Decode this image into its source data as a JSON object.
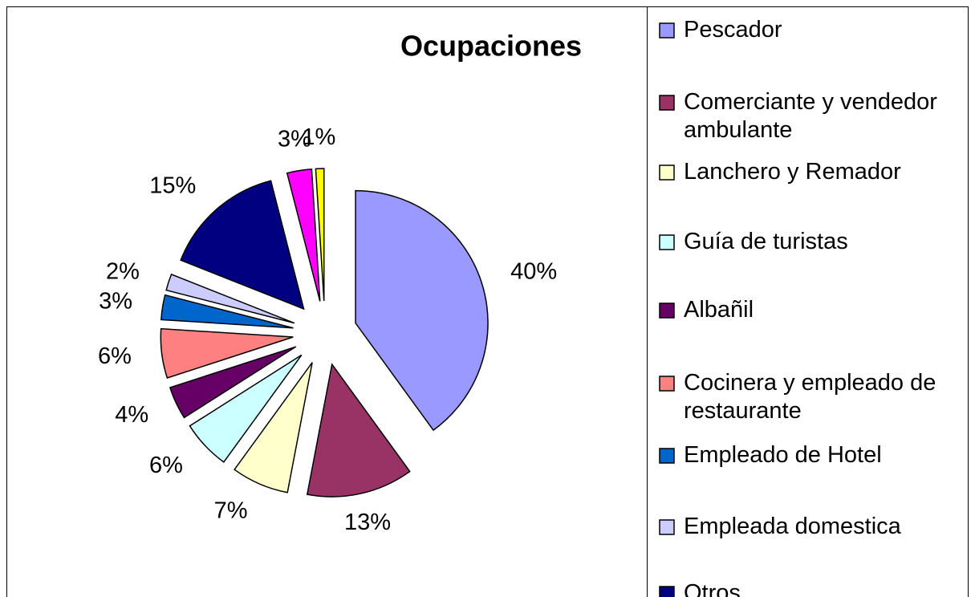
{
  "chart_data": {
    "type": "pie",
    "title": "Ocupaciones",
    "categories": [
      "Pescador",
      "Comerciante y vendedor ambulante",
      "Lanchero y Remador",
      "Guía de turistas",
      "Albañil",
      "Cocinera y empleado de restaurante",
      "Empleado de Hotel",
      "Empleada domestica",
      "Otros",
      null,
      null
    ],
    "values": [
      40,
      13,
      7,
      6,
      4,
      6,
      3,
      2,
      15,
      3,
      1
    ],
    "value_labels": [
      "40%",
      "13%",
      "7%",
      "6%",
      "4%",
      "6%",
      "3%",
      "2%",
      "15%",
      "3%",
      "1%"
    ],
    "colors": [
      "#9999ff",
      "#993366",
      "#ffffcc",
      "#ccffff",
      "#660066",
      "#ff8080",
      "#0066cc",
      "#ccccff",
      "#000080",
      "#ff00ff",
      "#ffff00"
    ],
    "legend": "right"
  }
}
